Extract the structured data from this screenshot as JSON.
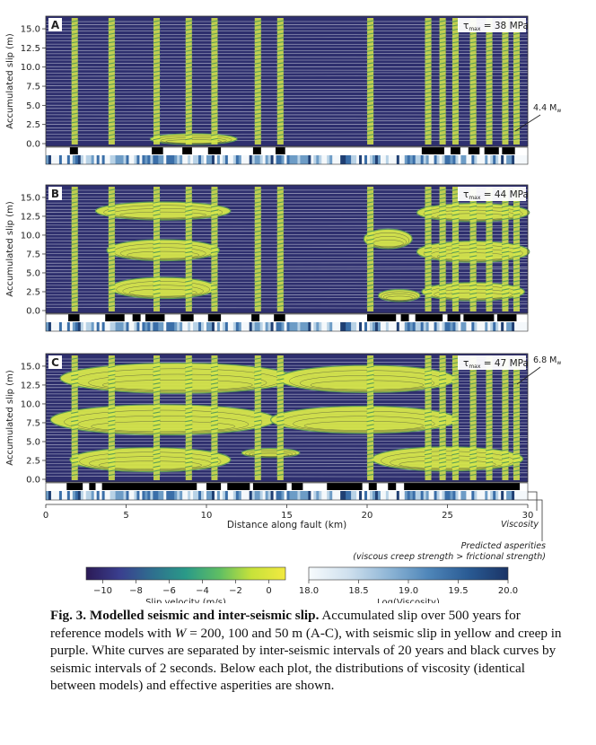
{
  "figure": {
    "panels": [
      {
        "label": "A",
        "tau_prefix": "τ",
        "tau_sub": "max",
        "tau_value": "= 38 MPa",
        "annotation": "4.4 M",
        "annotation_sub": "w"
      },
      {
        "label": "B",
        "tau_prefix": "τ",
        "tau_sub": "max",
        "tau_value": "= 44 MPa",
        "annotation": "",
        "annotation_sub": ""
      },
      {
        "label": "C",
        "tau_prefix": "τ",
        "tau_sub": "max",
        "tau_value": "= 47 MPa",
        "annotation": "6.8 M",
        "annotation_sub": "w"
      }
    ],
    "ylabel": "Accumulated slip (m)",
    "yticks": [
      "0.0",
      "2.5",
      "5.0",
      "7.5",
      "10.0",
      "12.5",
      "15.0"
    ],
    "xlabel": "Distance along fault (km)",
    "xticks": [
      "0",
      "5",
      "10",
      "15",
      "20",
      "25",
      "30"
    ],
    "viscosity_label": "Viscosity",
    "asperities_label": "Predicted asperities",
    "asperities_note": "(viscous creep strength > frictional strength)",
    "colorbar_slip": {
      "label": "Slip velocity (m/s)",
      "ticks": [
        "−10",
        "−8",
        "−6",
        "−4",
        "−2",
        "0"
      ],
      "min": -11,
      "max": 1
    },
    "colorbar_visc": {
      "label": "Log(Viscosity)",
      "ticks": [
        "18.0",
        "18.5",
        "19.0",
        "19.5",
        "20.0"
      ],
      "min": 18.0,
      "max": 20.0
    }
  },
  "caption": {
    "prefix": "Fig. 3.",
    "title": "Modelled seismic and inter-seismic slip.",
    "text1": "Accumulated slip over 500 years for reference models with",
    "var": "W",
    "text2": "= 200, 100 and 50 m (A-C), with seismic slip in yellow and creep in purple. White curves are separated by inter-seismic intervals of 20 years and black curves by seismic intervals of 2 seconds. Below each plot, the distributions of viscosity (identical between models) and effective asperities are shown."
  },
  "colors": {
    "creep": "#2e2f6e",
    "seismic": "#d6e64a",
    "seismic_edge": "#5e9e56",
    "viscosity_low": "#f0f6fb",
    "viscosity_high": "#1f3f73"
  }
}
